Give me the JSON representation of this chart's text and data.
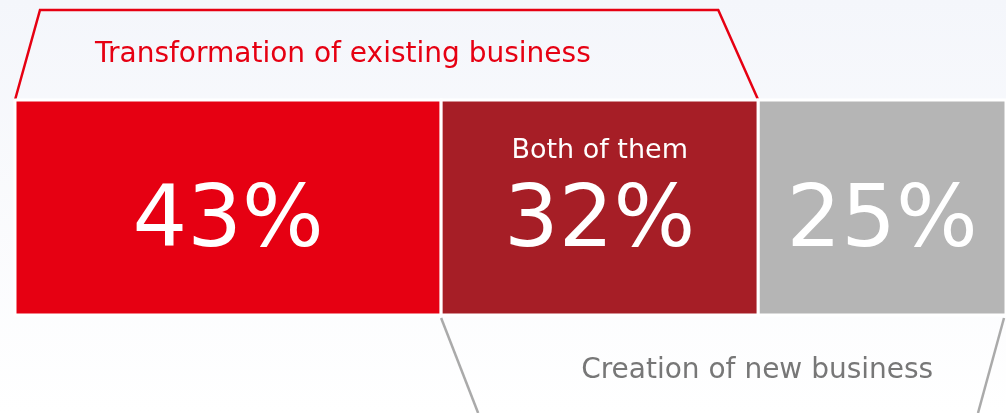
{
  "chart_data": {
    "type": "bar",
    "orientation": "horizontal",
    "stacked": true,
    "categories": [
      null
    ],
    "series": [
      {
        "color": "#e60012",
        "values": [
          43
        ],
        "value_labels": [
          "43%"
        ]
      },
      {
        "name": "Both of them",
        "color": "#a61e26",
        "values": [
          32
        ],
        "value_labels": [
          "32%"
        ]
      },
      {
        "color": "#b5b5b5",
        "values": [
          25
        ],
        "value_labels": [
          "25%"
        ]
      }
    ],
    "annotations": [
      "Transformation of existing business",
      "Creation of new business"
    ],
    "legend": false
  }
}
